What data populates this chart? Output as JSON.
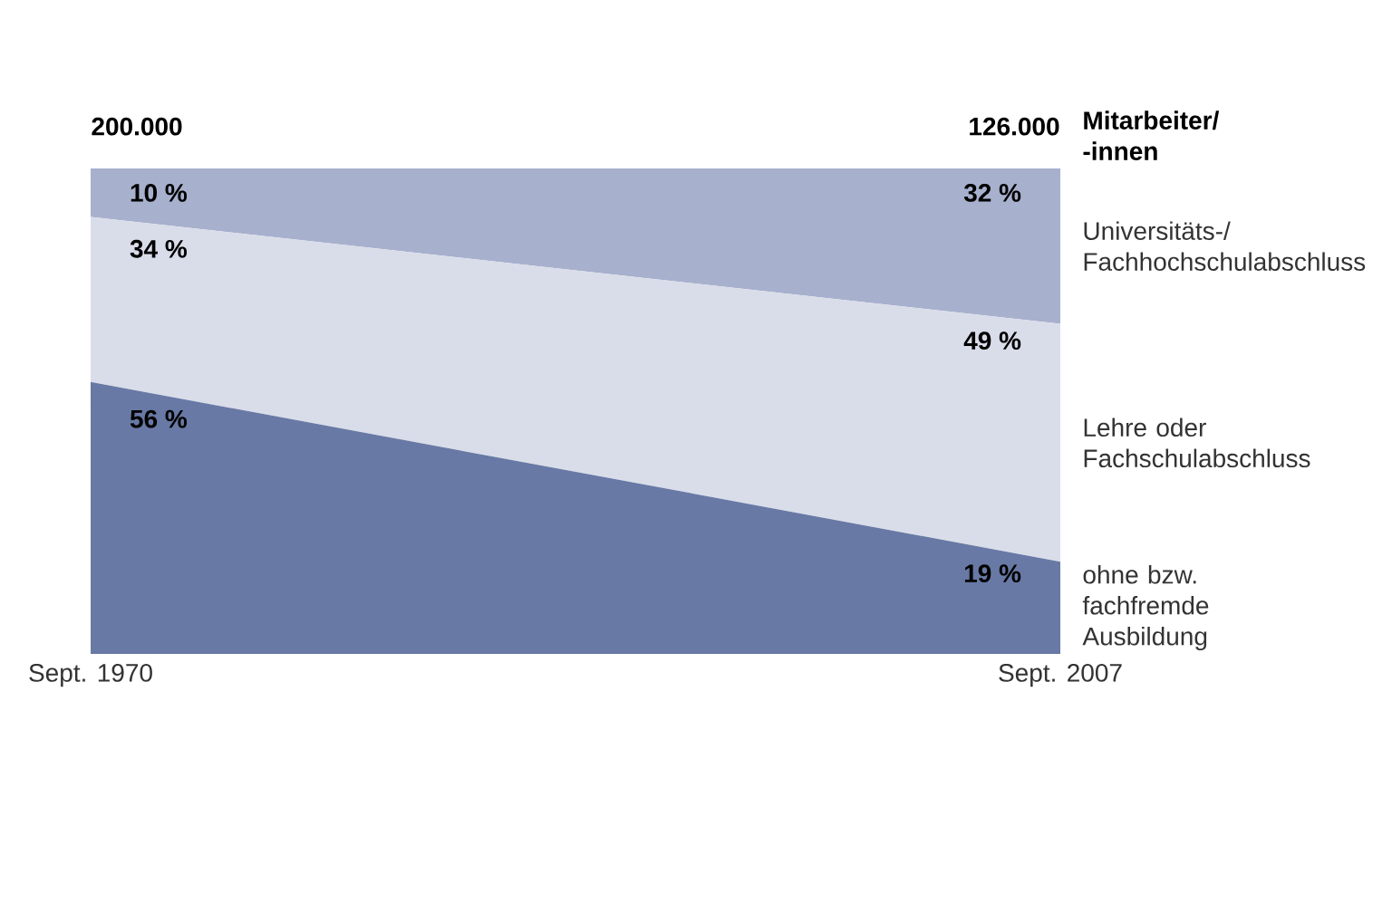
{
  "chart_data": {
    "type": "area",
    "stacked": true,
    "categories": [
      "Sept. 1970",
      "Sept. 2007"
    ],
    "tick_labels": "x",
    "legend_title": "Mitarbeiter/ -innen",
    "annotations": [
      "200.000",
      "126.000"
    ],
    "series": [
      {
        "name": "ohne bzw. fachfremde Ausbildung",
        "color": "#6879a5",
        "values": [
          56,
          19
        ],
        "value_labels": [
          "56 %",
          "19 %"
        ]
      },
      {
        "name": "Lehre oder Fachschulabschluss",
        "color": "#d9dde9",
        "values": [
          34,
          49
        ],
        "value_labels": [
          "34 %",
          "49 %"
        ]
      },
      {
        "name": "Universitäts-/ Fachhochschulabschluss",
        "color": "#a7b0cd",
        "values": [
          10,
          32
        ],
        "value_labels": [
          "10 %",
          "32 %"
        ]
      }
    ]
  }
}
